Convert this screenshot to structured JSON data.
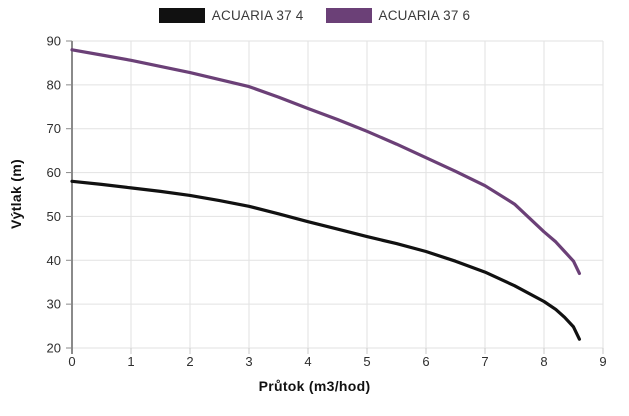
{
  "chart_data": {
    "type": "line",
    "title": "",
    "xlabel": "Průtok (m3/hod)",
    "ylabel": "Výtlak (m)",
    "xlim": [
      0,
      9
    ],
    "ylim": [
      20,
      90
    ],
    "x_ticks": [
      0,
      1,
      2,
      3,
      4,
      5,
      6,
      7,
      8,
      9
    ],
    "y_ticks": [
      20,
      30,
      40,
      50,
      60,
      70,
      80,
      90
    ],
    "grid": true,
    "legend_position": "top",
    "series": [
      {
        "name": "ACUARIA 37 4",
        "color": "#111111",
        "points": [
          [
            0,
            58
          ],
          [
            0.5,
            57.3
          ],
          [
            1,
            56.5
          ],
          [
            1.5,
            55.7
          ],
          [
            2,
            54.8
          ],
          [
            2.5,
            53.6
          ],
          [
            3,
            52.3
          ],
          [
            3.5,
            50.6
          ],
          [
            4,
            48.8
          ],
          [
            4.5,
            47.1
          ],
          [
            5,
            45.4
          ],
          [
            5.5,
            43.8
          ],
          [
            6,
            42
          ],
          [
            6.5,
            39.8
          ],
          [
            7,
            37.3
          ],
          [
            7.5,
            34.2
          ],
          [
            8,
            30.6
          ],
          [
            8.2,
            28.8
          ],
          [
            8.35,
            27
          ],
          [
            8.5,
            24.8
          ],
          [
            8.6,
            22
          ]
        ]
      },
      {
        "name": "ACUARIA 37 6",
        "color": "#6b4077",
        "points": [
          [
            0,
            88
          ],
          [
            0.5,
            86.8
          ],
          [
            1,
            85.6
          ],
          [
            1.5,
            84.2
          ],
          [
            2,
            82.8
          ],
          [
            2.5,
            81.2
          ],
          [
            3,
            79.6
          ],
          [
            3.5,
            77.2
          ],
          [
            4,
            74.6
          ],
          [
            4.5,
            72.1
          ],
          [
            5,
            69.4
          ],
          [
            5.5,
            66.5
          ],
          [
            6,
            63.4
          ],
          [
            6.5,
            60.3
          ],
          [
            7,
            57
          ],
          [
            7.5,
            52.8
          ],
          [
            8,
            46.5
          ],
          [
            8.2,
            44.2
          ],
          [
            8.35,
            42
          ],
          [
            8.5,
            39.8
          ],
          [
            8.6,
            37
          ]
        ]
      }
    ]
  },
  "colors": {
    "background": "#ffffff",
    "grid": "#e2e2e2",
    "axis_line": "#8a8a8a",
    "x_tick_mark": "#c9c9c9",
    "tick_text": "#2e2e2e",
    "series_black": "#111111",
    "series_purple": "#6b4077"
  }
}
